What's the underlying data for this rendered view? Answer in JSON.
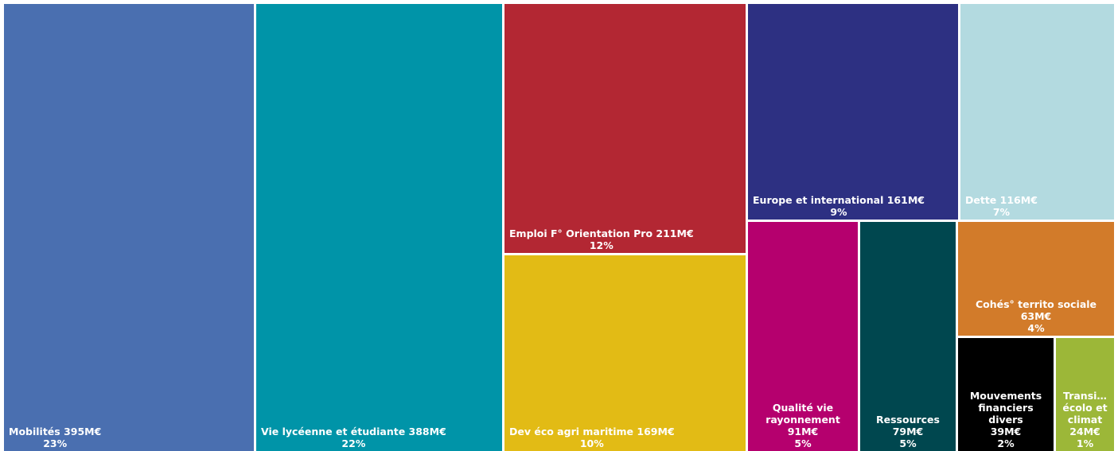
{
  "chart_data": {
    "type": "treemap",
    "categories": [
      "Mobilités",
      "Vie lycéenne et étudiante",
      "Emploi F° Orientation Pro",
      "Dev éco agri maritime",
      "Europe et international",
      "Dette",
      "Qualité vie rayonnement",
      "Ressources",
      "Cohés° territo sociale",
      "Mouvements financiers divers",
      "Transi… écolo et climat"
    ],
    "values": [
      395,
      388,
      211,
      169,
      161,
      116,
      91,
      79,
      63,
      39,
      24
    ],
    "value_labels": [
      "395M€",
      "388M€",
      "211M€",
      "169M€",
      "161M€",
      "116M€",
      "91M€",
      "79M€",
      "63M€",
      "39M€",
      "24M€"
    ],
    "shares": [
      23,
      22,
      12,
      10,
      9,
      7,
      5,
      5,
      4,
      2,
      1
    ],
    "share_labels": [
      "23%",
      "22%",
      "12%",
      "10%",
      "9%",
      "7%",
      "5%",
      "5%",
      "4%",
      "2%",
      "1%"
    ],
    "colors": [
      "#4a6fb0",
      "#0094a8",
      "#b32733",
      "#e2bb15",
      "#2d3082",
      "#b3dae0",
      "#b5006e",
      "#00474f",
      "#d27b2a",
      "#000000",
      "#9cb738"
    ]
  }
}
